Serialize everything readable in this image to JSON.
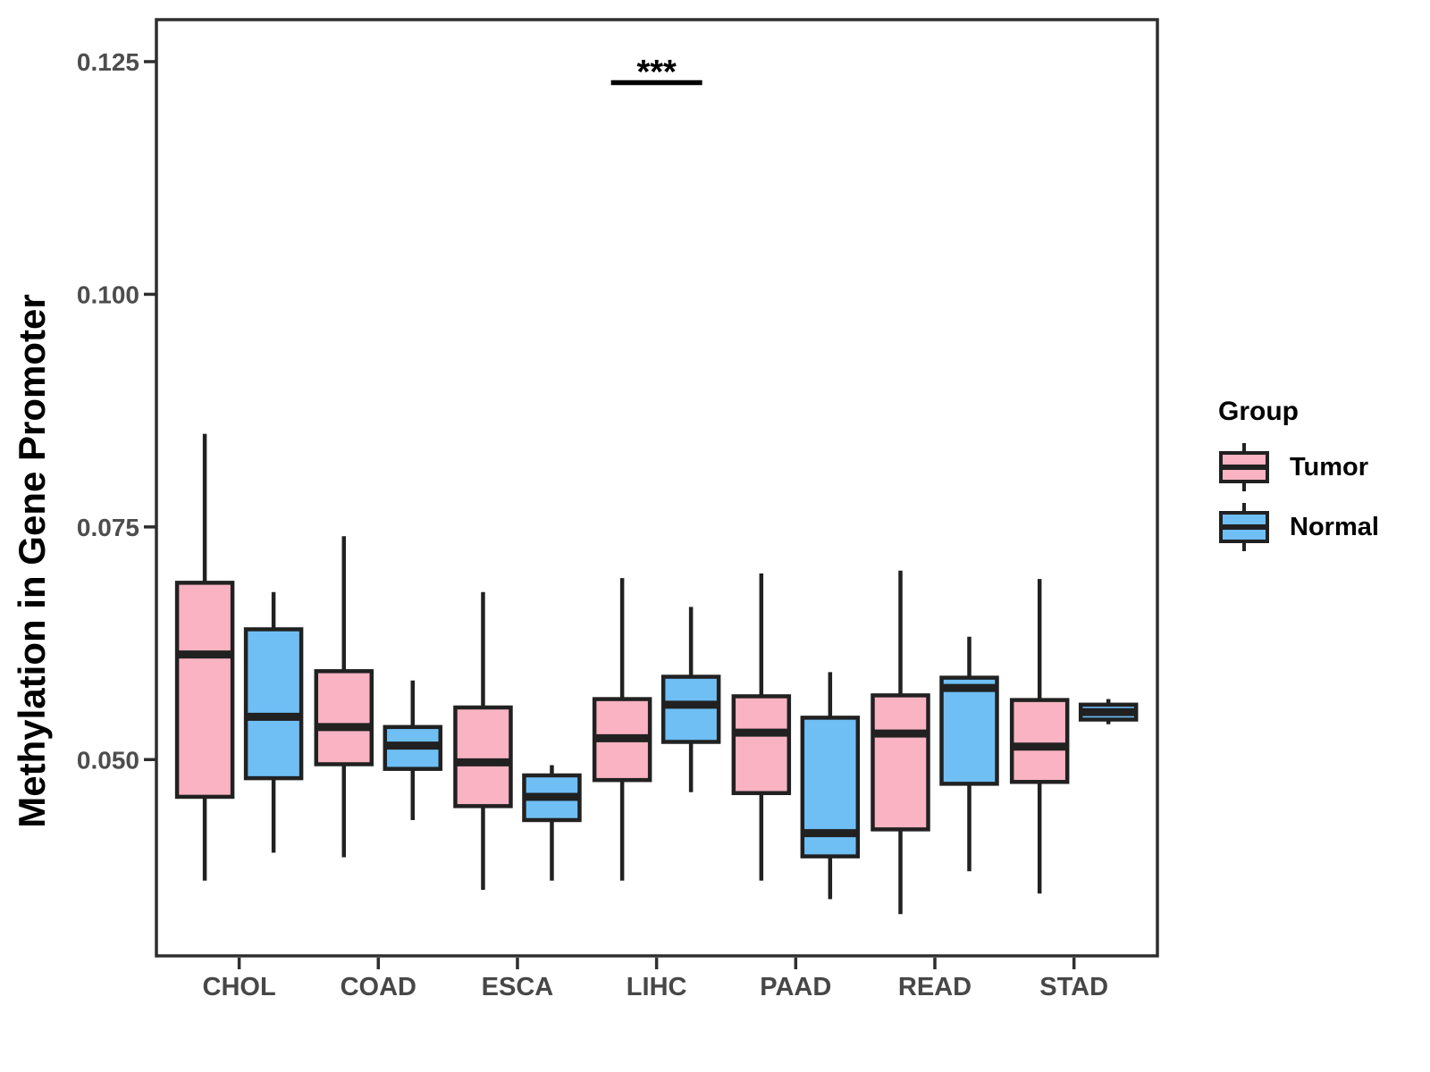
{
  "chart_data": {
    "type": "boxplot",
    "title": "",
    "xlabel": "",
    "ylabel": "Methylation in Gene Promoter",
    "grid": false,
    "background": "#ffffff",
    "ylim": [
      0.0289,
      0.1295
    ],
    "categories": [
      "CHOL",
      "COAD",
      "ESCA",
      "LIHC",
      "PAAD",
      "READ",
      "STAD"
    ],
    "y_ticks": [
      {
        "value": 0.05,
        "label": "0.050"
      },
      {
        "value": 0.075,
        "label": "0.075"
      },
      {
        "value": 0.1,
        "label": "0.100"
      },
      {
        "value": 0.125,
        "label": "0.125"
      }
    ],
    "legend": {
      "title": "Group",
      "position": "right",
      "entries": [
        {
          "label": "Tumor",
          "color": "#FAB3C3"
        },
        {
          "label": "Normal",
          "color": "#6FBFF5"
        }
      ]
    },
    "series": [
      {
        "name": "Tumor",
        "fill": "#FAB3C3",
        "stats": [
          {
            "category": "CHOL",
            "min": 0.037,
            "q1": 0.046,
            "median": 0.0613,
            "q3": 0.069,
            "max": 0.085
          },
          {
            "category": "COAD",
            "min": 0.0395,
            "q1": 0.0495,
            "median": 0.0535,
            "q3": 0.0595,
            "max": 0.074
          },
          {
            "category": "ESCA",
            "min": 0.036,
            "q1": 0.045,
            "median": 0.0497,
            "q3": 0.0556,
            "max": 0.068
          },
          {
            "category": "LIHC",
            "min": 0.037,
            "q1": 0.0478,
            "median": 0.0523,
            "q3": 0.0565,
            "max": 0.0695
          },
          {
            "category": "PAAD",
            "min": 0.037,
            "q1": 0.0464,
            "median": 0.0529,
            "q3": 0.0568,
            "max": 0.07
          },
          {
            "category": "READ",
            "min": 0.0334,
            "q1": 0.0425,
            "median": 0.0528,
            "q3": 0.0569,
            "max": 0.0703
          },
          {
            "category": "STAD",
            "min": 0.0356,
            "q1": 0.0476,
            "median": 0.0514,
            "q3": 0.0564,
            "max": 0.0694
          }
        ]
      },
      {
        "name": "Normal",
        "fill": "#6FBFF5",
        "stats": [
          {
            "category": "CHOL",
            "min": 0.04,
            "q1": 0.048,
            "median": 0.0546,
            "q3": 0.064,
            "max": 0.068
          },
          {
            "category": "COAD",
            "min": 0.0435,
            "q1": 0.049,
            "median": 0.0515,
            "q3": 0.0535,
            "max": 0.0585
          },
          {
            "category": "ESCA",
            "min": 0.037,
            "q1": 0.0435,
            "median": 0.046,
            "q3": 0.0483,
            "max": 0.0494
          },
          {
            "category": "LIHC",
            "min": 0.0465,
            "q1": 0.0519,
            "median": 0.0559,
            "q3": 0.0589,
            "max": 0.0664
          },
          {
            "category": "PAAD",
            "min": 0.035,
            "q1": 0.0396,
            "median": 0.0421,
            "q3": 0.0545,
            "max": 0.0594
          },
          {
            "category": "READ",
            "min": 0.038,
            "q1": 0.0474,
            "median": 0.0577,
            "q3": 0.0588,
            "max": 0.0632
          },
          {
            "category": "STAD",
            "min": 0.0538,
            "q1": 0.0543,
            "median": 0.0551,
            "q3": 0.0559,
            "max": 0.0565
          }
        ]
      }
    ],
    "annotation": {
      "label": "***",
      "category": "LIHC",
      "bar_below_label": true
    }
  },
  "styles": {
    "box_line": "#212121",
    "axis_line": "#2e2e2e",
    "ytick_label_color": "#4d4d4d",
    "xtick_label_color": "#474747",
    "annotation_color": "#000000"
  }
}
